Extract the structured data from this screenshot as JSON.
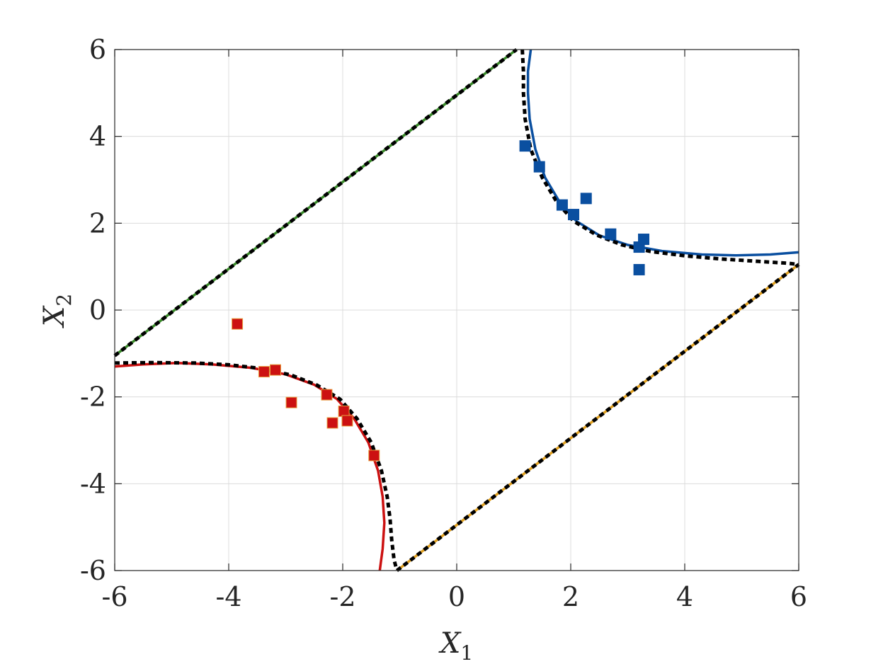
{
  "chart_data": {
    "type": "scatter",
    "title": "",
    "xlabel": "X",
    "xlabel_sub": "1",
    "ylabel": "X",
    "ylabel_sub": "2",
    "xlim": [
      -6,
      6
    ],
    "ylim": [
      -6,
      6
    ],
    "xticks": [
      -6,
      -4,
      -2,
      0,
      2,
      4,
      6
    ],
    "yticks": [
      -6,
      -4,
      -2,
      0,
      2,
      4,
      6
    ],
    "grid": true,
    "legend": "none",
    "series": [
      {
        "kind": "line",
        "color": "#3a8a2a",
        "points": [
          [
            -6,
            -1.05
          ],
          [
            1.05,
            6
          ]
        ]
      },
      {
        "kind": "line",
        "color": "#e0a020",
        "points": [
          [
            -1.05,
            -6
          ],
          [
            6,
            1.05
          ]
        ]
      },
      {
        "kind": "line",
        "color": "#cc1111",
        "points": [
          [
            -6,
            -1.3
          ],
          [
            -5.5,
            -1.25
          ],
          [
            -4.9,
            -1.22
          ],
          [
            -4.3,
            -1.25
          ],
          [
            -3.6,
            -1.33
          ],
          [
            -3.0,
            -1.48
          ],
          [
            -2.5,
            -1.72
          ],
          [
            -2.1,
            -2.05
          ],
          [
            -1.8,
            -2.5
          ],
          [
            -1.55,
            -3.05
          ],
          [
            -1.38,
            -3.7
          ],
          [
            -1.3,
            -4.3
          ],
          [
            -1.27,
            -4.9
          ],
          [
            -1.3,
            -5.5
          ],
          [
            -1.35,
            -6.0
          ]
        ]
      },
      {
        "kind": "line",
        "color": "#0a4fa0",
        "points": [
          [
            1.3,
            6.0
          ],
          [
            1.25,
            5.5
          ],
          [
            1.25,
            5.0
          ],
          [
            1.28,
            4.4
          ],
          [
            1.38,
            3.7
          ],
          [
            1.55,
            3.05
          ],
          [
            1.8,
            2.5
          ],
          [
            2.1,
            2.05
          ],
          [
            2.5,
            1.72
          ],
          [
            3.0,
            1.5
          ],
          [
            3.6,
            1.36
          ],
          [
            4.3,
            1.28
          ],
          [
            4.9,
            1.26
          ],
          [
            5.5,
            1.28
          ],
          [
            6.0,
            1.33
          ]
        ]
      },
      {
        "kind": "dashed",
        "color": "#000000",
        "points": [
          [
            -6,
            -1.05
          ],
          [
            1.05,
            6
          ]
        ]
      },
      {
        "kind": "dashed",
        "color": "#000000",
        "points": [
          [
            -1.05,
            -6
          ],
          [
            6,
            1.05
          ]
        ]
      },
      {
        "kind": "dashed",
        "color": "#000000",
        "points": [
          [
            -6,
            -1.22
          ],
          [
            -5.3,
            -1.21
          ],
          [
            -4.6,
            -1.22
          ],
          [
            -4.0,
            -1.26
          ],
          [
            -3.4,
            -1.35
          ],
          [
            -2.9,
            -1.5
          ],
          [
            -2.45,
            -1.73
          ],
          [
            -2.05,
            -2.05
          ],
          [
            -1.75,
            -2.5
          ],
          [
            -1.5,
            -3.05
          ],
          [
            -1.32,
            -3.7
          ],
          [
            -1.22,
            -4.3
          ],
          [
            -1.17,
            -4.8
          ],
          [
            -1.14,
            -5.3
          ],
          [
            -1.1,
            -5.75
          ],
          [
            -1.05,
            -6.0
          ]
        ]
      },
      {
        "kind": "dashed",
        "color": "#000000",
        "points": [
          [
            1.15,
            6.0
          ],
          [
            1.17,
            5.5
          ],
          [
            1.17,
            5.0
          ],
          [
            1.2,
            4.4
          ],
          [
            1.3,
            3.7
          ],
          [
            1.5,
            3.05
          ],
          [
            1.75,
            2.5
          ],
          [
            2.05,
            2.05
          ],
          [
            2.45,
            1.73
          ],
          [
            2.9,
            1.5
          ],
          [
            3.4,
            1.35
          ],
          [
            4.0,
            1.25
          ],
          [
            4.6,
            1.18
          ],
          [
            5.3,
            1.12
          ],
          [
            5.8,
            1.08
          ],
          [
            6.0,
            1.05
          ]
        ]
      },
      {
        "kind": "markers",
        "color": "#cc1111",
        "edge": "#e8a040",
        "points": [
          [
            -3.85,
            -0.32
          ],
          [
            -3.38,
            -1.42
          ],
          [
            -3.18,
            -1.38
          ],
          [
            -2.9,
            -2.13
          ],
          [
            -2.28,
            -1.95
          ],
          [
            -2.18,
            -2.6
          ],
          [
            -1.98,
            -2.33
          ],
          [
            -1.92,
            -2.55
          ],
          [
            -1.45,
            -3.35
          ]
        ]
      },
      {
        "kind": "markers",
        "color": "#0a4fa0",
        "edge": "#0a4fa0",
        "points": [
          [
            1.2,
            3.78
          ],
          [
            1.45,
            3.3
          ],
          [
            1.85,
            2.42
          ],
          [
            2.05,
            2.2
          ],
          [
            2.27,
            2.57
          ],
          [
            2.7,
            1.75
          ],
          [
            3.2,
            1.45
          ],
          [
            3.28,
            1.63
          ],
          [
            3.2,
            0.93
          ]
        ]
      }
    ]
  }
}
